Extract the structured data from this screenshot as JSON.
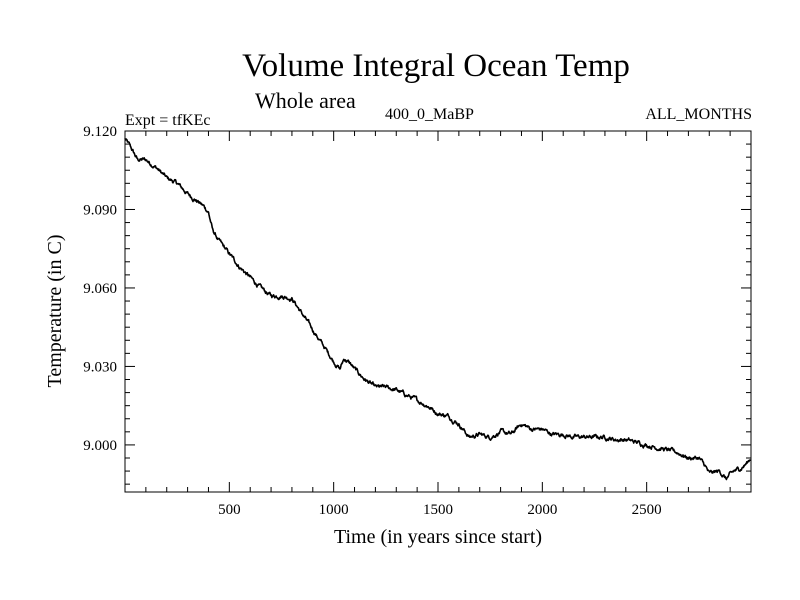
{
  "chart_data": {
    "type": "line",
    "title": "Volume Integral Ocean Temp",
    "subtitle": "Whole area",
    "experiment_label": "Expt = tfKEc",
    "period_label": "400_0_MaBP",
    "months_label": "ALL_MONTHS",
    "xlabel": "Time (in years since start)",
    "ylabel": "Temperature (in C)",
    "xlim": [
      0,
      3000
    ],
    "ylim": [
      8.982,
      9.12
    ],
    "x_ticks": [
      500,
      1000,
      1500,
      2000,
      2500
    ],
    "x_tick_labels": [
      "500",
      "1000",
      "1500",
      "2000",
      "2500"
    ],
    "y_ticks": [
      9.0,
      9.03,
      9.06,
      9.09,
      9.12
    ],
    "y_tick_labels": [
      "9.000",
      "9.030",
      "9.060",
      "9.090",
      "9.120"
    ],
    "grid": false,
    "series": [
      {
        "x": [
          0,
          25,
          60,
          100,
          150,
          200,
          250,
          300,
          350,
          380,
          400,
          420,
          450,
          500,
          550,
          600,
          650,
          700,
          750,
          800,
          850,
          900,
          950,
          1000,
          1030,
          1050,
          1080,
          1100,
          1150,
          1200,
          1250,
          1300,
          1350,
          1400,
          1450,
          1500,
          1550,
          1600,
          1650,
          1700,
          1750,
          1800,
          1850,
          1900,
          1950,
          2000,
          2050,
          2100,
          2150,
          2200,
          2250,
          2300,
          2350,
          2400,
          2450,
          2500,
          2550,
          2600,
          2650,
          2700,
          2750,
          2780,
          2800,
          2850,
          2880,
          2920,
          2950,
          2980,
          3000
        ],
        "y": [
          9.117,
          9.114,
          9.109,
          9.109,
          9.106,
          9.102,
          9.1,
          9.096,
          9.093,
          9.091,
          9.089,
          9.082,
          9.078,
          9.073,
          9.068,
          9.064,
          9.06,
          9.057,
          9.057,
          9.056,
          9.05,
          9.044,
          9.038,
          9.032,
          9.029,
          9.033,
          9.031,
          9.029,
          9.025,
          9.022,
          9.022,
          9.021,
          9.019,
          9.017,
          9.015,
          9.012,
          9.011,
          9.008,
          9.003,
          9.004,
          9.003,
          9.005,
          9.004,
          9.008,
          9.006,
          9.006,
          9.004,
          9.004,
          9.003,
          9.003,
          9.003,
          9.003,
          9.002,
          9.002,
          9.001,
          9.0,
          8.999,
          8.998,
          8.997,
          8.995,
          8.995,
          8.992,
          8.989,
          8.99,
          8.987,
          8.99,
          8.991,
          8.993,
          8.995
        ]
      }
    ]
  }
}
